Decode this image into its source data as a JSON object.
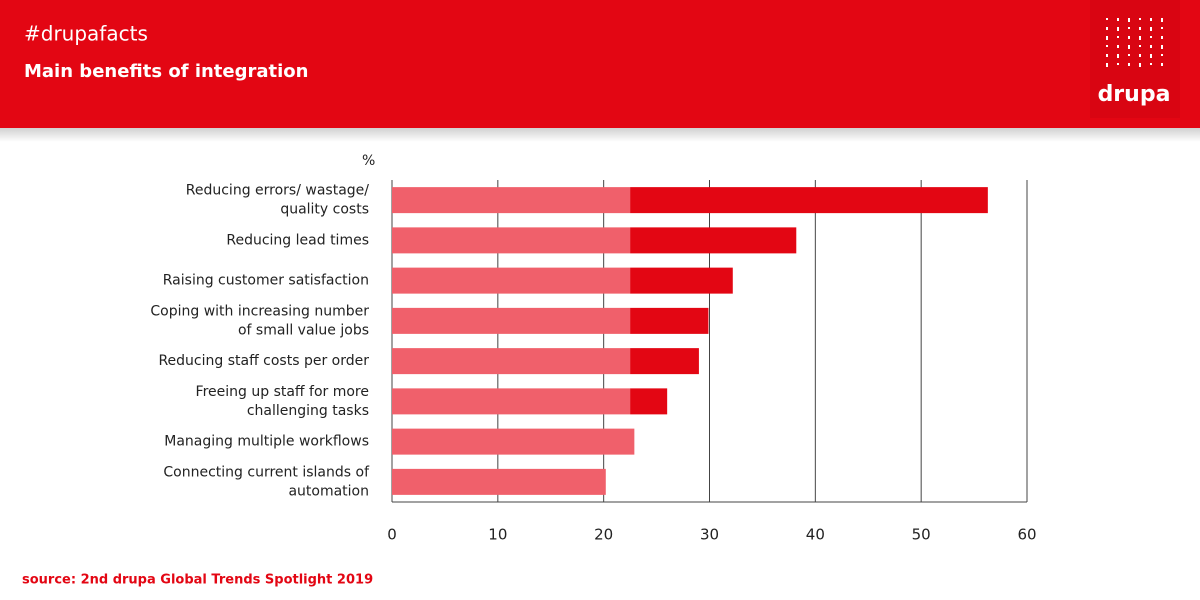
{
  "chart_data": {
    "type": "bar",
    "orientation": "horizontal",
    "stacked": true,
    "header": "#drupafacts",
    "title": "Main benefits of integration",
    "logo": "drupa",
    "unit_label": "%",
    "source": "source: 2nd drupa Global Trends Spotlight 2019",
    "categories": [
      [
        "Reducing errors/ wastage/",
        "quality costs"
      ],
      [
        "Reducing lead times"
      ],
      [
        "Raising customer satisfaction"
      ],
      [
        "Coping with increasing number",
        "of small value jobs"
      ],
      [
        "Reducing staff costs per order"
      ],
      [
        "Freeing up staff for more",
        "challenging tasks"
      ],
      [
        "Managing multiple workflows"
      ],
      [
        "Connecting current islands of",
        "automation"
      ]
    ],
    "series": [
      {
        "color": "#f0606b",
        "values": [
          22.5,
          22.5,
          22.5,
          22.5,
          22.5,
          22.5,
          22.9,
          20.2
        ]
      },
      {
        "color": "#e30613",
        "values": [
          33.8,
          15.7,
          9.7,
          7.4,
          6.5,
          3.5,
          null,
          null
        ]
      }
    ],
    "xlim": [
      0,
      60
    ],
    "xticks": [
      0,
      10,
      20,
      30,
      40,
      50,
      60
    ],
    "grid": true
  }
}
